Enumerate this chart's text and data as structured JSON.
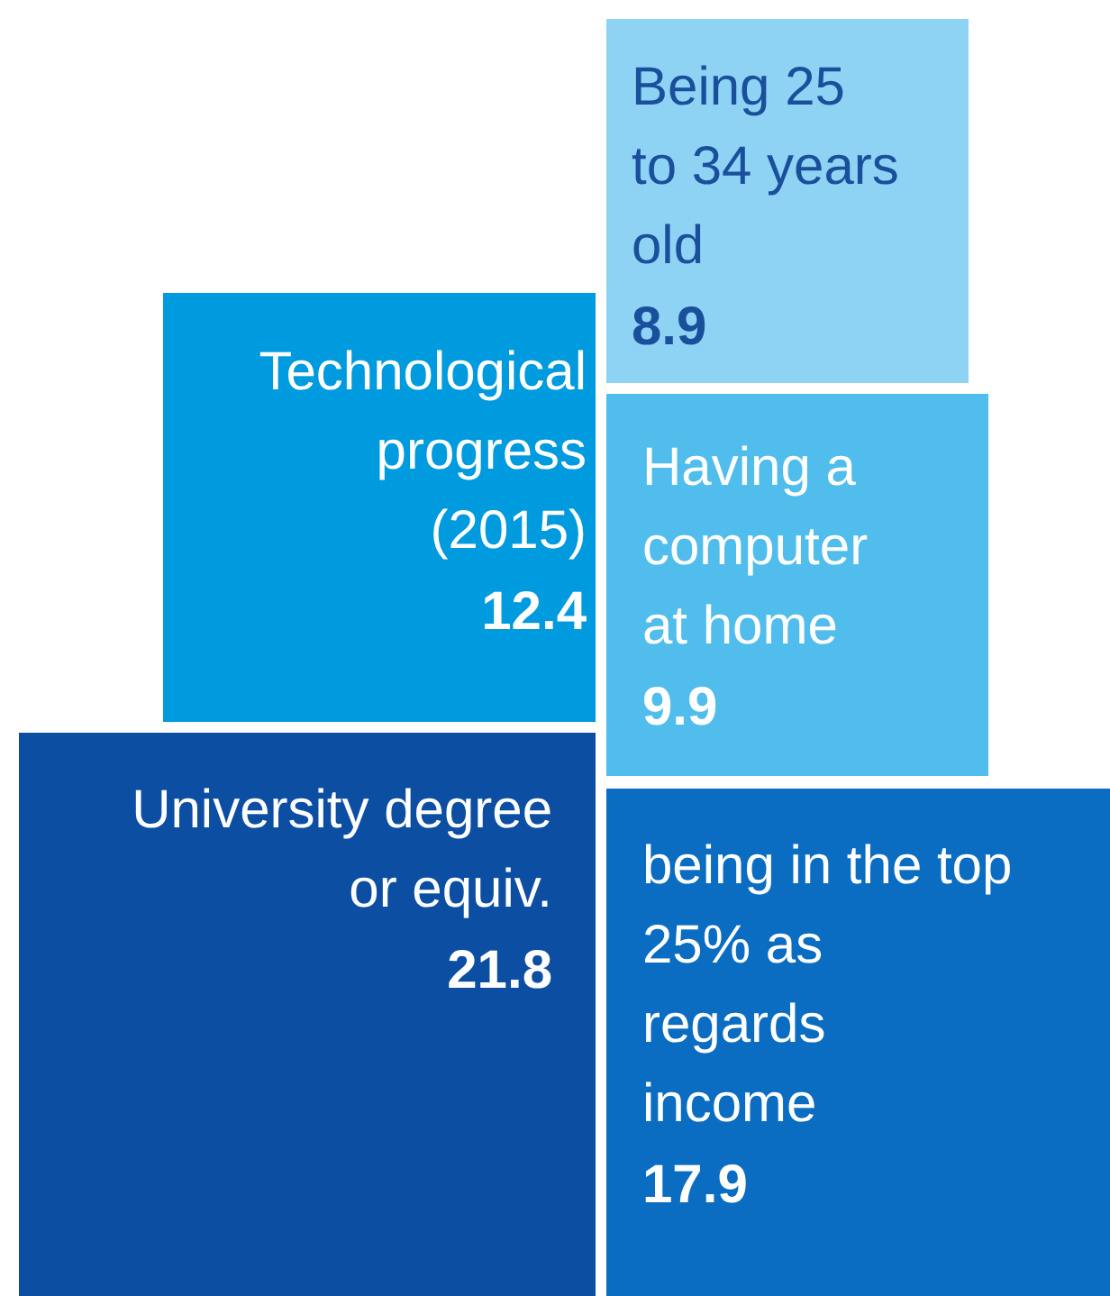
{
  "chart_data": {
    "type": "other",
    "categories": [
      "Being 25\nto 34 years\nold",
      "Technological\nprogress\n(2015)",
      "Having a\ncomputer\nat home",
      "University degree\nor equiv.",
      "being in the top\n25% as\nregards\nincome"
    ],
    "values": [
      8.9,
      12.4,
      9.9,
      21.8,
      17.9
    ],
    "colors": [
      "#8ed3f3",
      "#009ade",
      "#50bdec",
      "#0b4ea2",
      "#0a6dc2"
    ],
    "data_labels": true
  }
}
